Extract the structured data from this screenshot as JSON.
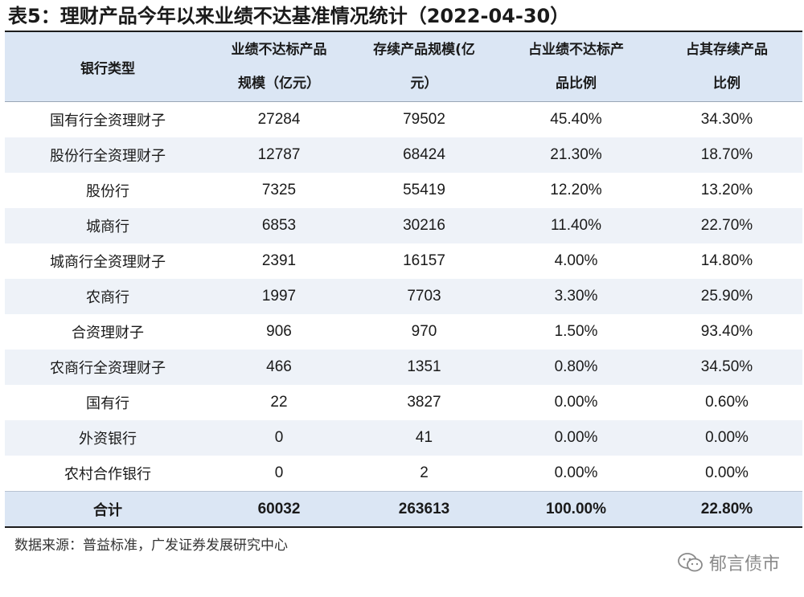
{
  "title": "表5：理财产品今年以来业绩不达基准情况统计（2022-04-30）",
  "table": {
    "headers": [
      {
        "line1": "银行类型",
        "line2": ""
      },
      {
        "line1": "业绩不达标产品",
        "line2": "规模（亿元）"
      },
      {
        "line1": "存续产品规模(亿",
        "line2": "元）"
      },
      {
        "line1": "占业绩不达标产",
        "line2": "品比例"
      },
      {
        "line1": "占其存续产品",
        "line2": "比例"
      }
    ],
    "rows": [
      [
        "国有行全资理财子",
        "27284",
        "79502",
        "45.40%",
        "34.30%"
      ],
      [
        "股份行全资理财子",
        "12787",
        "68424",
        "21.30%",
        "18.70%"
      ],
      [
        "股份行",
        "7325",
        "55419",
        "12.20%",
        "13.20%"
      ],
      [
        "城商行",
        "6853",
        "30216",
        "11.40%",
        "22.70%"
      ],
      [
        "城商行全资理财子",
        "2391",
        "16157",
        "4.00%",
        "14.80%"
      ],
      [
        "农商行",
        "1997",
        "7703",
        "3.30%",
        "25.90%"
      ],
      [
        "合资理财子",
        "906",
        "970",
        "1.50%",
        "93.40%"
      ],
      [
        "农商行全资理财子",
        "466",
        "1351",
        "0.80%",
        "34.50%"
      ],
      [
        "国有行",
        "22",
        "3827",
        "0.00%",
        "0.60%"
      ],
      [
        "外资银行",
        "0",
        "41",
        "0.00%",
        "0.00%"
      ],
      [
        "农村合作银行",
        "0",
        "2",
        "0.00%",
        "0.00%"
      ]
    ],
    "total": [
      "合计",
      "60032",
      "263613",
      "100.00%",
      "22.80%"
    ]
  },
  "source": "数据来源：普益标准，广发证券发展研究中心",
  "watermark": {
    "icon": "wechat-icon",
    "text": "郁言债市"
  },
  "colors": {
    "header_bg": "#dbe6f4",
    "stripe_bg": "#eef2f8",
    "rule": "#1c1c1c"
  }
}
